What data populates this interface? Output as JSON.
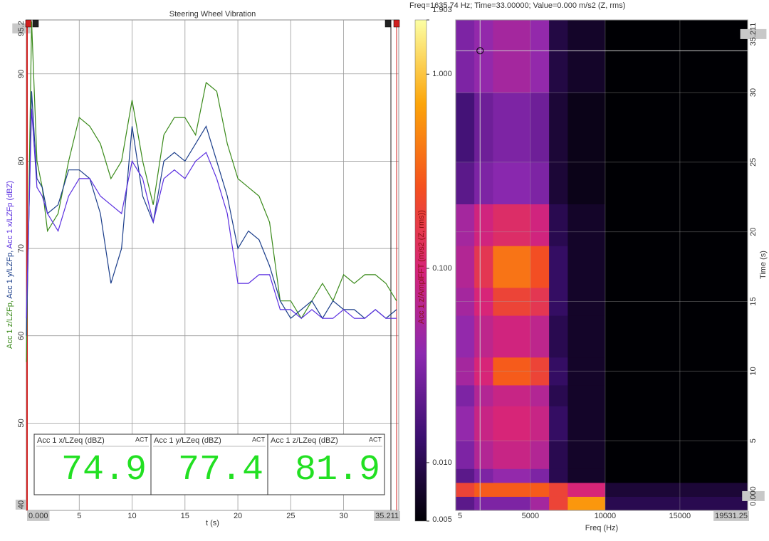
{
  "chart_data": [
    {
      "type": "line",
      "title": "Steering Wheel Vibration",
      "x_label": "t (s)",
      "y_label": [
        "Acc 1 z/LZFp, ",
        "Acc 1 y/LZFp, ",
        "Acc 1 x/LZFp (dBZ)"
      ],
      "x": [
        0,
        0.5,
        1,
        1.5,
        2,
        3,
        4,
        5,
        6,
        7,
        8,
        9,
        10,
        11,
        12,
        13,
        14,
        15,
        16,
        17,
        18,
        19,
        20,
        21,
        22,
        23,
        24,
        25,
        26,
        27,
        28,
        29,
        30,
        31,
        32,
        33,
        34,
        35
      ],
      "series": [
        {
          "color": "#3a8a1a",
          "values": [
            57,
            96,
            80,
            77,
            72,
            74,
            80,
            85,
            84,
            82,
            78,
            80,
            87,
            80,
            75,
            83,
            85,
            85,
            83,
            89,
            88,
            82,
            78,
            77,
            76,
            73,
            64,
            64,
            62,
            64,
            66,
            64,
            67,
            66,
            67,
            67,
            66,
            64
          ]
        },
        {
          "color": "#1a3d8a",
          "values": [
            60,
            88,
            78,
            77,
            74,
            75,
            79,
            79,
            78,
            74,
            66,
            70,
            84,
            76,
            73,
            80,
            81,
            80,
            82,
            84,
            80,
            76,
            70,
            72,
            71,
            68,
            64,
            62,
            63,
            64,
            62,
            64,
            63,
            63,
            62,
            63,
            62,
            63
          ]
        },
        {
          "color": "#5a2ee0",
          "values": [
            62,
            86,
            77,
            76,
            74,
            72,
            76,
            78,
            78,
            76,
            75,
            74,
            80,
            78,
            73,
            78,
            79,
            78,
            80,
            81,
            78,
            74,
            66,
            66,
            67,
            67,
            63,
            63,
            62,
            63,
            62,
            62,
            63,
            62,
            62,
            63,
            62,
            62
          ]
        }
      ],
      "xlim": [
        0,
        35.211
      ],
      "xticks": [
        {
          "value": 0,
          "label": "0.000"
        },
        5,
        10,
        15,
        20,
        25,
        30,
        35.211
      ],
      "ylim": [
        40,
        95.2
      ],
      "yticks": [
        40,
        50,
        60,
        70,
        80,
        90,
        95.2
      ],
      "grid": true,
      "readouts": [
        {
          "label": "Acc 1 x/LZeq (dBZ)",
          "status": "ACT",
          "value": 74.9,
          "color": "#5a2ee0"
        },
        {
          "label": "Acc 1 y/LZeq (dBZ)",
          "status": "ACT",
          "value": 77.4,
          "color": "#1a3d8a"
        },
        {
          "label": "Acc 1 z/LZeq (dBZ)",
          "status": "ACT",
          "value": 81.9,
          "color": "#3a8a1a"
        }
      ]
    },
    {
      "type": "heatmap",
      "cursor_readout": "Freq=1635.74 Hz; Time=33.00000; Value=0.000 m/s2 (Z, rms)",
      "cursor": {
        "x": 1635.74,
        "y": 33
      },
      "x_label": "Freq (Hz)",
      "y_label": "Time (s)",
      "colorbar_label": "Acc 1 z/AmplFFT (m/s2 (Z, rms))",
      "xlim": [
        5,
        19531.25
      ],
      "xticks": [
        5,
        5000,
        10000,
        15000,
        19531.25
      ],
      "ylim": [
        0,
        35.211
      ],
      "yticks": [
        {
          "value": 0,
          "label": "0.000"
        },
        5,
        10,
        15,
        20,
        25,
        30,
        35.211
      ],
      "clim": [
        0.005,
        1.903
      ],
      "cticks": [
        0.005,
        {
          "value": 0.01,
          "label": "0.010"
        },
        {
          "value": 0.1,
          "label": "0.100"
        },
        {
          "value": 1,
          "label": "1.000"
        },
        1.903
      ],
      "log_color": true,
      "colorscale": [
        "#000004",
        "#3b0f70",
        "#8c29b0",
        "#d6247a",
        "#f5501e",
        "#fca50a",
        "#fcffa4"
      ],
      "x_edges": [
        5,
        1250,
        2500,
        5000,
        6250,
        7500,
        10000,
        19531.25
      ],
      "y_edges": [
        0,
        1,
        2,
        3,
        5,
        7.5,
        9,
        11,
        14,
        16,
        19,
        22,
        25,
        30,
        35.211
      ],
      "values": [
        [
          0.02,
          0.03,
          0.03,
          0.05,
          0.2,
          0.6,
          0.01
        ],
        [
          0.2,
          0.3,
          0.3,
          0.3,
          0.2,
          0.1,
          0.008
        ],
        [
          0.02,
          0.03,
          0.04,
          0.03,
          0.01,
          0.007,
          0.005
        ],
        [
          0.03,
          0.06,
          0.08,
          0.06,
          0.01,
          0.007,
          0.005
        ],
        [
          0.04,
          0.08,
          0.1,
          0.08,
          0.012,
          0.007,
          0.005
        ],
        [
          0.03,
          0.06,
          0.08,
          0.06,
          0.01,
          0.007,
          0.005
        ],
        [
          0.05,
          0.1,
          0.3,
          0.2,
          0.012,
          0.007,
          0.005
        ],
        [
          0.04,
          0.07,
          0.09,
          0.07,
          0.01,
          0.007,
          0.005
        ],
        [
          0.05,
          0.1,
          0.2,
          0.15,
          0.012,
          0.007,
          0.005
        ],
        [
          0.06,
          0.15,
          0.4,
          0.25,
          0.012,
          0.007,
          0.005
        ],
        [
          0.05,
          0.09,
          0.12,
          0.09,
          0.01,
          0.007,
          0.005
        ],
        [
          0.02,
          0.03,
          0.035,
          0.03,
          0.008,
          0.006,
          0.005
        ],
        [
          0.015,
          0.025,
          0.03,
          0.025,
          0.008,
          0.006,
          0.005
        ],
        [
          0.03,
          0.04,
          0.05,
          0.04,
          0.009,
          0.007,
          0.005
        ]
      ]
    }
  ]
}
